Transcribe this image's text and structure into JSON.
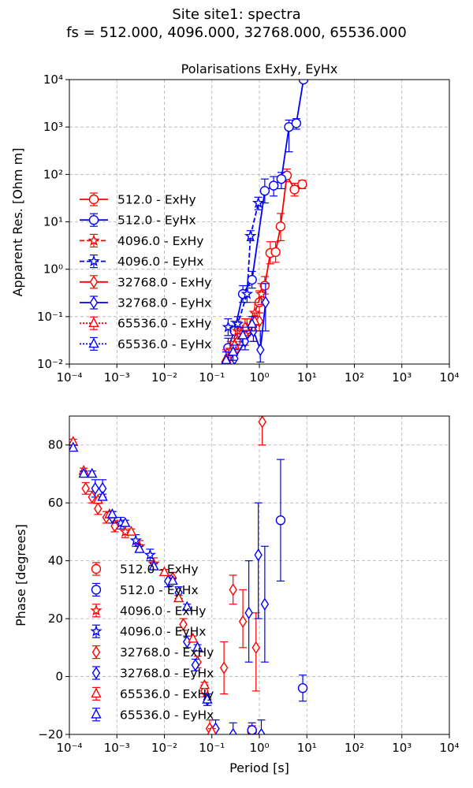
{
  "figure": {
    "title_line1": "Site site1: spectra",
    "title_line2": "fs = 512.000, 4096.000, 32768.000, 65536.000"
  },
  "colors": {
    "exhy": "#ff0000",
    "eyhx": "#0000ff",
    "grid": "#b0b0b0"
  },
  "chart_data": [
    {
      "type": "line",
      "title": "Polarisations ExHy, EyHx",
      "xlabel": "",
      "ylabel": "Apparent Res. [Ohm m]",
      "xscale": "log",
      "yscale": "log",
      "xlim": [
        0.0001,
        10000
      ],
      "ylim": [
        0.01,
        10000
      ],
      "xticks": [
        "10⁻⁴",
        "10⁻³",
        "10⁻²",
        "10⁻¹",
        "10⁰",
        "10¹",
        "10²",
        "10³",
        "10⁴"
      ],
      "yticks": [
        "10⁻²",
        "10⁻¹",
        "10⁰",
        "10¹",
        "10²",
        "10³",
        "10⁴"
      ],
      "grid": true,
      "legend_position": "left",
      "series": [
        {
          "name": "512.0 - ExHy",
          "color": "exhy",
          "marker": "circle",
          "linestyle": "solid",
          "points": [
            [
              1.0,
              0.2,
              0.12,
              0.35
            ],
            [
              1.3,
              0.45,
              0.3,
              0.7
            ],
            [
              1.7,
              2.2,
              1.3,
              3.8
            ],
            [
              2.2,
              2.3,
              1.4,
              3.8
            ],
            [
              2.8,
              8,
              4,
              15
            ],
            [
              3.8,
              95,
              70,
              130
            ],
            [
              5.5,
              48,
              35,
              65
            ],
            [
              8,
              62,
              50,
              75
            ]
          ]
        },
        {
          "name": "512.0 - EyHx",
          "color": "eyhx",
          "marker": "circle",
          "linestyle": "solid",
          "points": [
            [
              0.22,
              0.022,
              0.015,
              0.035
            ],
            [
              0.3,
              0.05,
              0.03,
              0.08
            ],
            [
              0.45,
              0.3,
              0.2,
              0.45
            ],
            [
              0.7,
              0.6,
              0.4,
              0.9
            ],
            [
              1.3,
              45,
              25,
              80
            ],
            [
              2.0,
              58,
              35,
              90
            ],
            [
              2.9,
              80,
              50,
              110
            ],
            [
              4.2,
              1000,
              300,
              1400
            ],
            [
              6,
              1200,
              900,
              1500
            ],
            [
              8.5,
              10000,
              9000,
              11000
            ]
          ]
        },
        {
          "name": "4096.0 - ExHy",
          "color": "exhy",
          "marker": "star",
          "linestyle": "dashed",
          "points": [
            [
              0.25,
              0.02,
              0.012,
              0.03
            ],
            [
              0.35,
              0.05,
              0.03,
              0.08
            ],
            [
              0.55,
              0.06,
              0.04,
              0.09
            ],
            [
              0.8,
              0.12,
              0.07,
              0.2
            ],
            [
              1.1,
              0.3,
              0.18,
              0.5
            ]
          ]
        },
        {
          "name": "4096.0 - EyHx",
          "color": "eyhx",
          "marker": "star",
          "linestyle": "dashed",
          "points": [
            [
              0.22,
              0.06,
              0.04,
              0.09
            ],
            [
              0.35,
              0.07,
              0.05,
              0.1
            ],
            [
              0.55,
              0.3,
              0.2,
              0.45
            ],
            [
              0.65,
              5,
              4,
              6.5
            ],
            [
              0.95,
              25,
              18,
              33
            ]
          ]
        },
        {
          "name": "32768.0 - ExHy",
          "color": "exhy",
          "marker": "diamond",
          "linestyle": "solid",
          "points": [
            [
              0.35,
              0.03,
              0.02,
              0.05
            ],
            [
              0.5,
              0.04,
              0.025,
              0.06
            ],
            [
              0.75,
              0.05,
              0.03,
              0.08
            ],
            [
              1.0,
              0.08,
              0.05,
              0.12
            ]
          ]
        },
        {
          "name": "32768.0 - EyHx",
          "color": "eyhx",
          "marker": "diamond",
          "linestyle": "solid",
          "points": [
            [
              0.3,
              0.013,
              0.01,
              0.02
            ],
            [
              0.5,
              0.03,
              0.02,
              0.05
            ],
            [
              0.75,
              0.05,
              0.03,
              0.1
            ],
            [
              1.05,
              0.02,
              0.011,
              0.05
            ],
            [
              1.35,
              0.2,
              0.05,
              0.5
            ]
          ]
        },
        {
          "name": "65536.0 - ExHy",
          "color": "exhy",
          "marker": "triangle",
          "linestyle": "dotted",
          "points": [
            [
              0.2,
              0.013,
              0.01,
              0.02
            ],
            [
              0.3,
              0.025,
              0.018,
              0.035
            ],
            [
              0.5,
              0.06,
              0.04,
              0.09
            ],
            [
              0.8,
              0.08,
              0.05,
              0.12
            ]
          ]
        },
        {
          "name": "65536.0 - EyHx",
          "color": "eyhx",
          "marker": "triangle",
          "linestyle": "dotted",
          "points": [
            [
              0.2,
              0.012,
              0.01,
              0.018
            ],
            [
              0.28,
              0.018,
              0.012,
              0.025
            ],
            [
              0.45,
              0.04,
              0.025,
              0.06
            ],
            [
              0.7,
              0.07,
              0.05,
              0.1
            ]
          ]
        }
      ]
    },
    {
      "type": "scatter",
      "title": "",
      "xlabel": "Period [s]",
      "ylabel": "Phase [degrees]",
      "xscale": "log",
      "yscale": "linear",
      "xlim": [
        0.0001,
        10000
      ],
      "ylim": [
        -20,
        90
      ],
      "xticks": [
        "10⁻⁴",
        "10⁻³",
        "10⁻²",
        "10⁻¹",
        "10⁰",
        "10¹",
        "10²",
        "10³",
        "10⁴"
      ],
      "yticks": [
        "−20",
        "0",
        "20",
        "40",
        "60",
        "80"
      ],
      "grid": true,
      "legend_position": "lower-left",
      "series": [
        {
          "name": "512.0 - ExHy",
          "color": "exhy",
          "marker": "circle",
          "points": [
            [
              0.7,
              -19,
              -21,
              -17
            ]
          ]
        },
        {
          "name": "512.0 - EyHx",
          "color": "eyhx",
          "marker": "circle",
          "points": [
            [
              0.7,
              -18.5,
              -21,
              -16
            ],
            [
              2.8,
              54,
              33,
              75
            ],
            [
              8.2,
              -4,
              -8.5,
              0.5
            ]
          ]
        },
        {
          "name": "4096.0 - ExHy",
          "color": "exhy",
          "marker": "star",
          "points": [
            [
              0.0015,
              50,
              48,
              52
            ],
            [
              0.003,
              45,
              43,
              47
            ],
            [
              0.006,
              39,
              37,
              41
            ]
          ]
        },
        {
          "name": "4096.0 - EyHx",
          "color": "eyhx",
          "marker": "star",
          "points": [
            [
              0.0012,
              53,
              51,
              55
            ],
            [
              0.0025,
              47,
              45,
              49
            ],
            [
              0.005,
              42,
              40,
              44
            ]
          ]
        },
        {
          "name": "32768.0 - ExHy",
          "color": "exhy",
          "marker": "diamond",
          "points": [
            [
              0.00022,
              65,
              63,
              67
            ],
            [
              0.0003,
              62,
              60,
              64
            ],
            [
              0.0004,
              58,
              56,
              60
            ],
            [
              0.0006,
              55,
              53,
              57
            ],
            [
              0.0009,
              52,
              50,
              54
            ],
            [
              0.015,
              34,
              32,
              36
            ],
            [
              0.025,
              18,
              16,
              20
            ],
            [
              0.05,
              5,
              3,
              7
            ],
            [
              0.07,
              -5,
              -7,
              -3
            ],
            [
              0.09,
              -18,
              -21,
              -15
            ],
            [
              0.18,
              3,
              -6,
              12
            ],
            [
              0.28,
              30,
              25,
              35
            ],
            [
              0.45,
              19,
              10,
              30
            ],
            [
              0.85,
              10,
              -5,
              22
            ],
            [
              1.15,
              88,
              80,
              90
            ]
          ]
        },
        {
          "name": "32768.0 - EyHx",
          "color": "eyhx",
          "marker": "diamond",
          "points": [
            [
              0.00035,
              65,
              62,
              68
            ],
            [
              0.0005,
              65,
              62,
              68
            ],
            [
              0.0008,
              55,
              53,
              57
            ],
            [
              0.012,
              33,
              31,
              35
            ],
            [
              0.02,
              29,
              27,
              31
            ],
            [
              0.03,
              12,
              10,
              14
            ],
            [
              0.045,
              4,
              2,
              6
            ],
            [
              0.08,
              -8,
              -10,
              -6
            ],
            [
              0.12,
              -18,
              -21,
              -15
            ],
            [
              0.28,
              -20,
              -25,
              -16
            ],
            [
              0.6,
              22,
              5,
              40
            ],
            [
              0.95,
              42,
              20,
              60
            ],
            [
              1.1,
              -20,
              -25,
              -15
            ],
            [
              1.3,
              25,
              5,
              45
            ]
          ]
        },
        {
          "name": "65536.0 - ExHy",
          "color": "exhy",
          "marker": "triangle",
          "points": [
            [
              0.00012,
              81,
              80,
              82
            ],
            [
              0.0002,
              71,
              70,
              72
            ],
            [
              0.0004,
              61,
              60,
              62
            ],
            [
              0.0007,
              56,
              55,
              57
            ],
            [
              0.002,
              50,
              49,
              51
            ],
            [
              0.01,
              36,
              35,
              37
            ],
            [
              0.02,
              27,
              26,
              28
            ],
            [
              0.04,
              13,
              12,
              14
            ],
            [
              0.07,
              -3,
              -4,
              -2
            ],
            [
              0.1,
              -19,
              -20,
              -18
            ]
          ]
        },
        {
          "name": "65536.0 - EyHx",
          "color": "eyhx",
          "marker": "triangle",
          "points": [
            [
              0.00012,
              79,
              78,
              80
            ],
            [
              0.0002,
              70,
              69,
              71
            ],
            [
              0.0003,
              70,
              69,
              71
            ],
            [
              0.0005,
              62,
              61,
              63
            ],
            [
              0.0008,
              56,
              55,
              57
            ],
            [
              0.0015,
              53,
              52,
              54
            ],
            [
              0.003,
              44,
              43,
              45
            ],
            [
              0.006,
              38,
              37,
              39
            ],
            [
              0.015,
              33,
              32,
              34
            ],
            [
              0.03,
              24,
              23,
              25
            ],
            [
              0.05,
              10,
              9,
              11
            ],
            [
              0.08,
              -8,
              -9,
              -7
            ]
          ]
        }
      ]
    }
  ]
}
